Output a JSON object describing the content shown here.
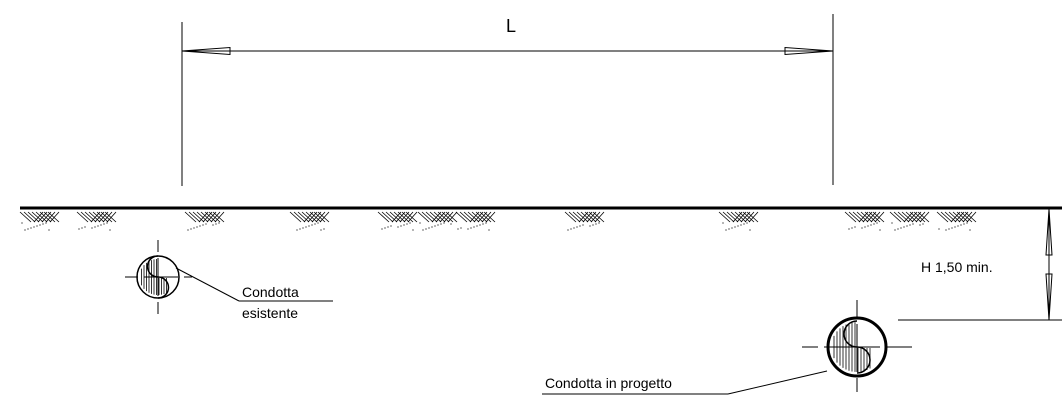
{
  "labels": {
    "span": "L",
    "depth": "H  1,50 min.",
    "existing_pipe_line1": "Condotta",
    "existing_pipe_line2": "esistente",
    "new_pipe": "Condotta in progetto"
  }
}
